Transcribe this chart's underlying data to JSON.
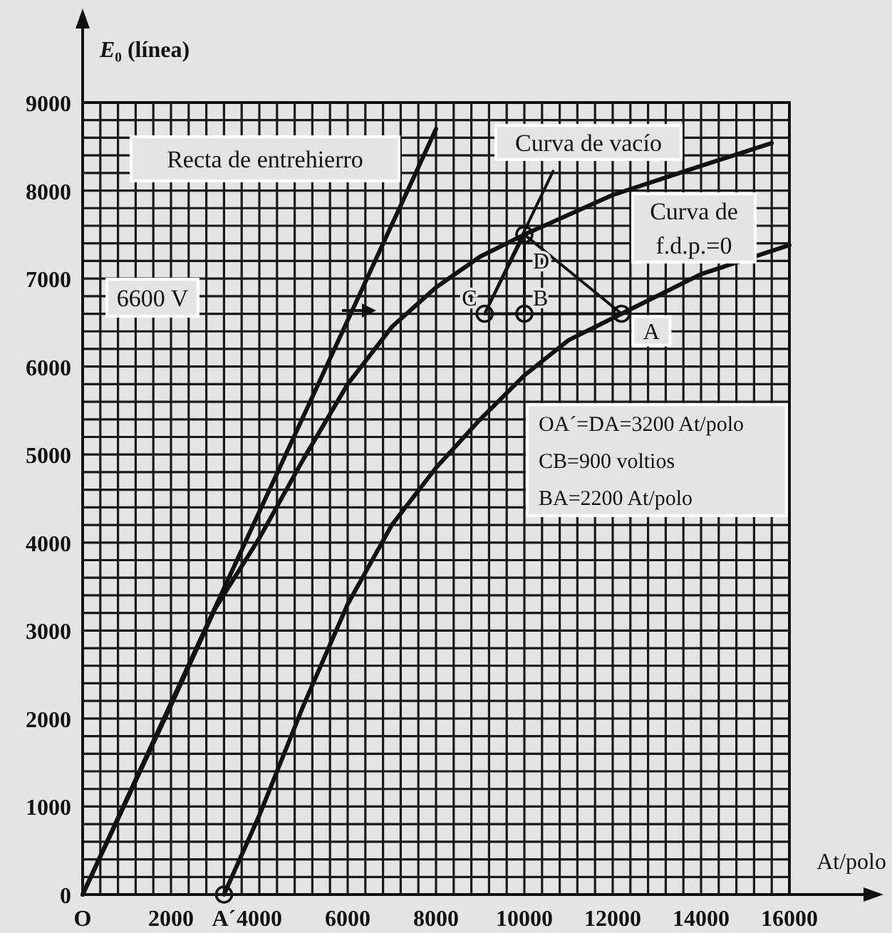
{
  "chart_data": {
    "type": "line",
    "ylabel": "E₀ (línea)",
    "xlabel": "At/polo",
    "xlim": [
      0,
      16000
    ],
    "ylim": [
      0,
      9000
    ],
    "xticks": [
      {
        "value": 0,
        "label": "O"
      },
      2000,
      {
        "value": 3200,
        "label": "A´"
      },
      4000,
      6000,
      8000,
      10000,
      12000,
      14000,
      16000
    ],
    "yticks": [
      0,
      1000,
      2000,
      3000,
      4000,
      5000,
      6000,
      7000,
      8000,
      9000
    ],
    "grid": true,
    "legend": false,
    "series": [
      {
        "name": "Recta de entrehierro",
        "color": "#111111",
        "x": [
          0,
          8000
        ],
        "values": [
          0,
          8700
        ]
      },
      {
        "name": "Curva de vacío",
        "color": "#111111",
        "x": [
          0,
          2000,
          3000,
          4000,
          5000,
          6000,
          7000,
          8000,
          9000,
          10000,
          12000,
          14000,
          15600
        ],
        "values": [
          0,
          2150,
          3250,
          4050,
          4950,
          5800,
          6450,
          6900,
          7250,
          7500,
          7950,
          8280,
          8540
        ]
      },
      {
        "name": "Curva de f.d.p.=0",
        "color": "#111111",
        "x": [
          3200,
          4000,
          5000,
          6000,
          7000,
          8000,
          9000,
          10000,
          11000,
          12200,
          14000,
          16000
        ],
        "values": [
          0,
          900,
          2150,
          3300,
          4200,
          4850,
          5400,
          5900,
          6300,
          6600,
          7050,
          7380
        ]
      },
      {
        "color": "#111111",
        "x": [
          10000,
          9100,
          12200,
          10000,
          10000
        ],
        "values": [
          7500,
          6600,
          6600,
          7500,
          6600
        ]
      },
      {
        "color": "#111111",
        "x": [
          9100,
          10650
        ],
        "values": [
          6600,
          8220
        ]
      },
      {
        "type": "scatter",
        "marker": "circle",
        "color": "#111111",
        "x": [
          3200,
          9100,
          10000,
          10000,
          12200
        ],
        "values": [
          0,
          6600,
          6600,
          7500,
          6600
        ]
      }
    ],
    "annotations": [
      {
        "text": "D",
        "x": 10000,
        "y": 7500
      },
      {
        "text": "C",
        "x": 9100,
        "y": 6600
      },
      {
        "text": "B",
        "x": 10000,
        "y": 6600
      },
      {
        "text": "A",
        "x": 12200,
        "y": 6600
      },
      "6600 V",
      "OA´=DA=3200 At/polo",
      "CB=900 voltios",
      "BA=2200 At/polo"
    ]
  }
}
